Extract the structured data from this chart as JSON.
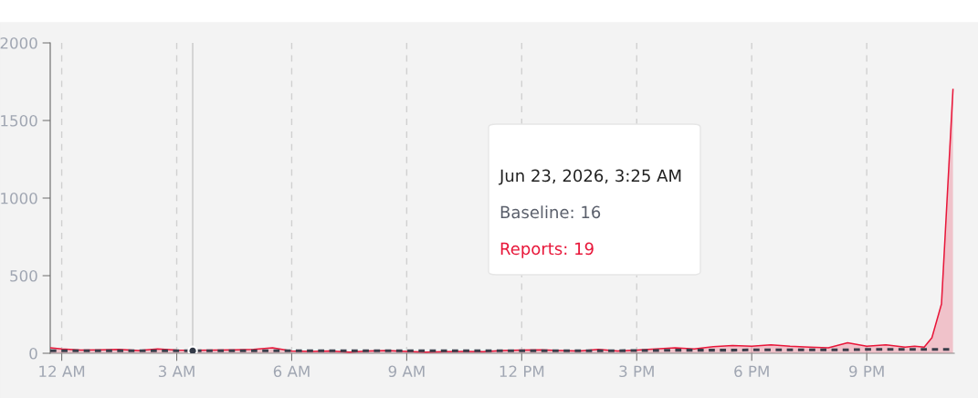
{
  "chart_data": {
    "type": "area",
    "x": [
      "2026-06-22T23:42",
      "2026-06-23T00:00",
      "2026-06-23T00:30",
      "2026-06-23T01:00",
      "2026-06-23T01:30",
      "2026-06-23T02:00",
      "2026-06-23T02:30",
      "2026-06-23T03:00",
      "2026-06-23T03:25",
      "2026-06-23T04:00",
      "2026-06-23T04:30",
      "2026-06-23T05:00",
      "2026-06-23T05:30",
      "2026-06-23T06:00",
      "2026-06-23T06:30",
      "2026-06-23T07:00",
      "2026-06-23T07:30",
      "2026-06-23T08:00",
      "2026-06-23T08:30",
      "2026-06-23T09:00",
      "2026-06-23T09:30",
      "2026-06-23T10:00",
      "2026-06-23T10:30",
      "2026-06-23T11:00",
      "2026-06-23T11:30",
      "2026-06-23T12:00",
      "2026-06-23T12:30",
      "2026-06-23T13:00",
      "2026-06-23T13:30",
      "2026-06-23T14:00",
      "2026-06-23T14:30",
      "2026-06-23T15:00",
      "2026-06-23T15:30",
      "2026-06-23T16:00",
      "2026-06-23T16:30",
      "2026-06-23T17:00",
      "2026-06-23T17:30",
      "2026-06-23T18:00",
      "2026-06-23T18:30",
      "2026-06-23T19:00",
      "2026-06-23T19:30",
      "2026-06-23T20:00",
      "2026-06-23T20:30",
      "2026-06-23T21:00",
      "2026-06-23T21:30",
      "2026-06-23T22:00",
      "2026-06-23T22:15",
      "2026-06-23T22:30",
      "2026-06-23T22:42",
      "2026-06-23T22:57",
      "2026-06-23T23:15"
    ],
    "series": [
      {
        "color": "#e8173a",
        "values": [
          35,
          28,
          20,
          22,
          25,
          18,
          28,
          20,
          19,
          20,
          22,
          25,
          35,
          15,
          12,
          15,
          8,
          15,
          18,
          12,
          8,
          10,
          12,
          10,
          18,
          20,
          22,
          18,
          15,
          25,
          15,
          20,
          28,
          35,
          28,
          42,
          50,
          45,
          55,
          45,
          40,
          35,
          68,
          45,
          55,
          40,
          45,
          40,
          100,
          318,
          1700
        ]
      },
      {
        "type": "line",
        "color": "#3a3f4b",
        "line_style": "dashed",
        "values": [
          16,
          16,
          16,
          16,
          16,
          16,
          16,
          16,
          16,
          16,
          16,
          16,
          16,
          16,
          16,
          16,
          16,
          16,
          16,
          16,
          16,
          16,
          16,
          16,
          16,
          16,
          16,
          16,
          16,
          16,
          16,
          18,
          18,
          20,
          20,
          20,
          20,
          22,
          22,
          22,
          22,
          22,
          22,
          25,
          25,
          25,
          25,
          25,
          25,
          25,
          25
        ]
      },
      {
        "type": "scatter",
        "color": "#333a48",
        "marker": "circle",
        "x": [
          "2026-06-23T03:25"
        ],
        "values": [
          16
        ]
      }
    ],
    "xlim": [
      "2026-06-22T23:42",
      "2026-06-23T23:17"
    ],
    "xticks": [
      {
        "value": "2026-06-23T00:00",
        "label": "12 AM"
      },
      {
        "value": "2026-06-23T03:00",
        "label": "3 AM"
      },
      {
        "value": "2026-06-23T06:00",
        "label": "6 AM"
      },
      {
        "value": "2026-06-23T09:00",
        "label": "9 AM"
      },
      {
        "value": "2026-06-23T12:00",
        "label": "12 PM"
      },
      {
        "value": "2026-06-23T15:00",
        "label": "3 PM"
      },
      {
        "value": "2026-06-23T18:00",
        "label": "6 PM"
      },
      {
        "value": "2026-06-23T21:00",
        "label": "9 PM"
      }
    ],
    "ylim": [
      0,
      2000
    ],
    "yticks": [
      0,
      500,
      1000,
      1500,
      2000
    ],
    "grid": "x",
    "ref_lines": [
      {
        "axis": "x",
        "value": "2026-06-23T03:25",
        "color": "#c8c8c8"
      }
    ],
    "annotations": [
      "Jun 23, 2026, 3:25 AM",
      "Baseline: 16",
      "Reports: 19"
    ]
  }
}
